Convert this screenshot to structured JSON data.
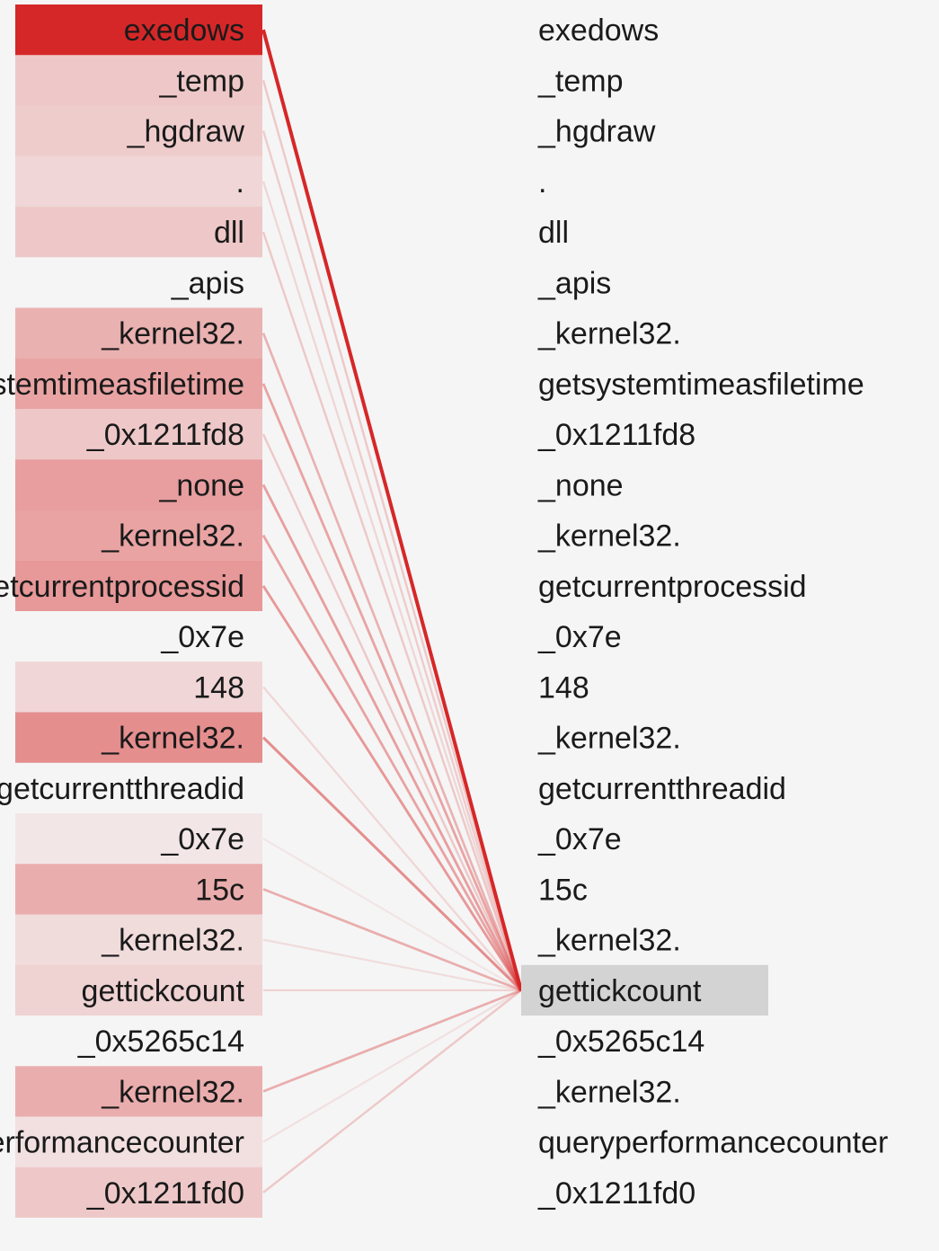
{
  "source_tokens": [
    {
      "text": ".",
      "weight": 0.0
    },
    {
      "text": "exedows",
      "weight": 1.0
    },
    {
      "text": "_temp",
      "weight": 0.22
    },
    {
      "text": "_hgdraw",
      "weight": 0.2
    },
    {
      "text": ".",
      "weight": 0.15
    },
    {
      "text": "dll",
      "weight": 0.22
    },
    {
      "text": "_apis",
      "weight": 0.0
    },
    {
      "text": "_kernel32.",
      "weight": 0.33
    },
    {
      "text": "getsystemtimeasfiletime",
      "weight": 0.4
    },
    {
      "text": "_0x1211fd8",
      "weight": 0.22
    },
    {
      "text": "_none",
      "weight": 0.42
    },
    {
      "text": "_kernel32.",
      "weight": 0.4
    },
    {
      "text": "getcurrentprocessid",
      "weight": 0.45
    },
    {
      "text": "_0x7e",
      "weight": 0.0
    },
    {
      "text": "148",
      "weight": 0.15
    },
    {
      "text": "_kernel32.",
      "weight": 0.5
    },
    {
      "text": "getcurrentthreadid",
      "weight": 0.0
    },
    {
      "text": "_0x7e",
      "weight": 0.07
    },
    {
      "text": "15c",
      "weight": 0.35
    },
    {
      "text": "_kernel32.",
      "weight": 0.12
    },
    {
      "text": "gettickcount",
      "weight": 0.17
    },
    {
      "text": "_0x5265c14",
      "weight": 0.0
    },
    {
      "text": "_kernel32.",
      "weight": 0.35
    },
    {
      "text": "queryperformancecounter",
      "weight": 0.1
    },
    {
      "text": "_0x1211fd0",
      "weight": 0.22
    }
  ],
  "target_tokens": [
    ".",
    "exedows",
    "_temp",
    "_hgdraw",
    ".",
    "dll",
    "_apis",
    "_kernel32.",
    "getsystemtimeasfiletime",
    "_0x1211fd8",
    "_none",
    "_kernel32.",
    "getcurrentprocessid",
    "_0x7e",
    "148",
    "_kernel32.",
    "getcurrentthreadid",
    "_0x7e",
    "15c",
    "_kernel32.",
    "gettickcount",
    "_0x5265c14",
    "_kernel32.",
    "queryperformancecounter",
    "_0x1211fd0"
  ],
  "highlighted_target_index": 20,
  "colors": {
    "background": "#f5f5f5",
    "attention": "#d62728",
    "highlight": "#d3d3d3",
    "text": "#1a1a1a"
  }
}
